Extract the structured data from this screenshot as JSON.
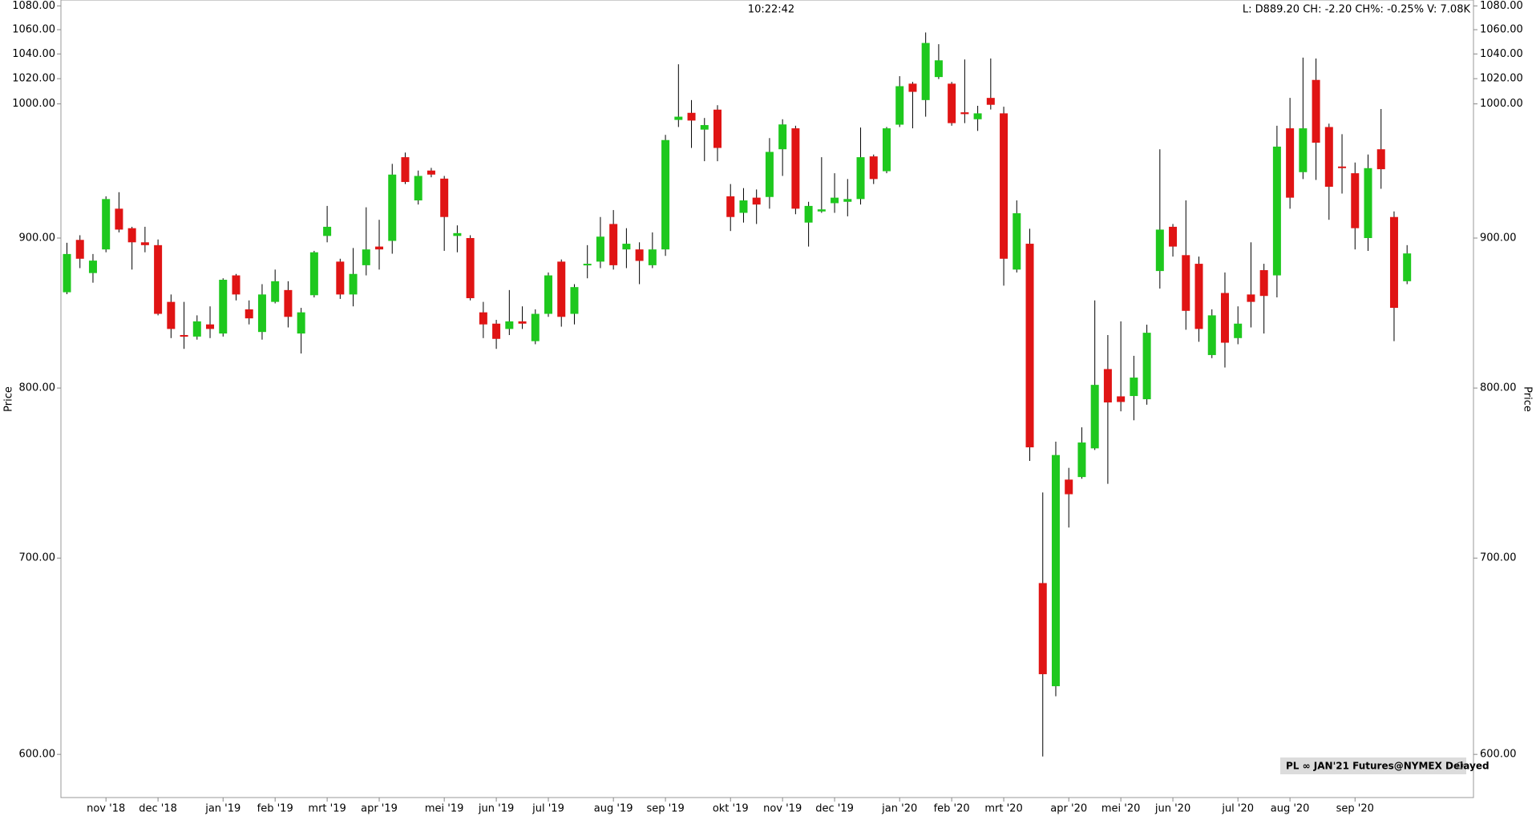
{
  "chart_data": {
    "type": "candlestick",
    "time": "10:22:42",
    "status": "L: D889.20 CH: -2.20 CH%: -0.25% V: 7.08K",
    "legend_label": "PL ∞ JAN'21 Futures@NYMEX Delayed",
    "y_label": "Price",
    "y2_label": "Price",
    "log_scale": true,
    "up_color": "#1ec81e",
    "down_color": "#e01414",
    "ylim": [
      580,
      1085
    ],
    "yticks": [
      {
        "value": 600,
        "label": "600.00"
      },
      {
        "value": 700,
        "label": "700.00"
      },
      {
        "value": 800,
        "label": "800.00"
      },
      {
        "value": 900,
        "label": "900.00"
      },
      {
        "value": 1000,
        "label": "1000.00"
      },
      {
        "value": 1020,
        "label": "1020.00"
      },
      {
        "value": 1040,
        "label": "1040.00"
      },
      {
        "value": 1060,
        "label": "1060.00"
      },
      {
        "value": 1080,
        "label": "1080.00"
      }
    ],
    "categories": [
      null,
      null,
      null,
      "nov '18",
      null,
      null,
      null,
      "dec '18",
      null,
      null,
      null,
      null,
      "jan '19",
      null,
      null,
      null,
      "feb '19",
      null,
      null,
      null,
      "mrt '19",
      null,
      null,
      null,
      "apr '19",
      null,
      null,
      null,
      null,
      "mei '19",
      null,
      null,
      null,
      "jun '19",
      null,
      null,
      null,
      "jul '19",
      null,
      null,
      null,
      null,
      "aug '19",
      null,
      null,
      null,
      "sep '19",
      null,
      null,
      null,
      null,
      "okt '19",
      null,
      null,
      null,
      "nov '19",
      null,
      null,
      null,
      "dec '19",
      null,
      null,
      null,
      null,
      "jan '20",
      null,
      null,
      null,
      "feb '20",
      null,
      null,
      null,
      "mrt '20",
      null,
      null,
      null,
      null,
      "apr '20",
      null,
      null,
      null,
      "mei '20",
      null,
      null,
      null,
      "jun '20",
      null,
      null,
      null,
      null,
      "jul '20",
      null,
      null,
      null,
      "aug '20",
      null,
      null,
      null,
      null,
      "sep '20",
      null,
      null,
      null,
      null
    ],
    "open": [
      862.5,
      898.7,
      875.6,
      892,
      921,
      907,
      897,
      895,
      856,
      834,
      833,
      841,
      835,
      874,
      851,
      836,
      856,
      864,
      835,
      860.5,
      901.5,
      883.5,
      861,
      881,
      894,
      898,
      959,
      927,
      949,
      943,
      901.5,
      900,
      849,
      841.5,
      838,
      843,
      830,
      848,
      883.5,
      848,
      881,
      883.5,
      910,
      892,
      892,
      881,
      892,
      987.5,
      993,
      980,
      995.5,
      930,
      918,
      929,
      929.5,
      965,
      981,
      911,
      919,
      925,
      926,
      928,
      959.6,
      948.5,
      983.8,
      1016,
      1003,
      1021.3,
      1016,
      993.4,
      988,
      1004.7,
      992.6,
      878,
      896,
      686.4,
      633,
      744.5,
      746,
      763,
      812,
      794.8,
      795,
      793,
      877,
      908,
      888,
      882,
      821,
      862,
      832,
      861,
      877.6,
      874,
      981,
      947.8,
      1019,
      982,
      952,
      947,
      900,
      965,
      915,
      870
    ],
    "high": [
      896.7,
      902,
      888.8,
      930,
      933,
      908,
      908,
      899,
      861,
      856,
      847,
      853,
      872,
      875,
      857,
      868,
      878,
      870,
      852,
      891,
      923,
      885.5,
      893,
      922,
      913,
      954,
      962.5,
      949,
      951,
      945,
      909,
      902,
      856,
      844,
      864,
      853,
      851,
      876,
      885,
      868,
      895,
      915,
      920,
      907,
      897,
      904,
      976,
      1031.6,
      1003,
      989,
      999,
      939,
      936,
      935,
      973.5,
      988,
      983,
      926,
      959,
      947,
      942.7,
      981.6,
      961,
      982,
      1022,
      1017.4,
      1057.7,
      1048,
      1017.4,
      1035.5,
      998.5,
      1036.3,
      997.8,
      927,
      906.6,
      737,
      767,
      751.4,
      775.7,
      857,
      834,
      843,
      820.5,
      840.8,
      965,
      910,
      927,
      887,
      851,
      876,
      853,
      897,
      882,
      983,
      1004.7,
      1037,
      1036.3,
      984.6,
      976.5,
      955,
      961,
      996,
      919,
      895
    ],
    "low": [
      861.2,
      879,
      869,
      890,
      904,
      878,
      890,
      847,
      832,
      825,
      831,
      832,
      833,
      857,
      841,
      831,
      855,
      839,
      822,
      859,
      897,
      858,
      853,
      874,
      878,
      889,
      939,
      924,
      944,
      891,
      890,
      857,
      832,
      825,
      834,
      838,
      828,
      846,
      839.5,
      841,
      872,
      879,
      878,
      879,
      868,
      879,
      887.5,
      982,
      966,
      956,
      956,
      905,
      911,
      910,
      921,
      945,
      917,
      894,
      918,
      918,
      915.5,
      924,
      939,
      947,
      982,
      981,
      990,
      1019.7,
      983,
      985,
      979,
      995.6,
      867,
      876,
      755.5,
      599,
      628,
      717,
      745,
      762,
      742,
      785.5,
      780,
      789.6,
      865,
      887,
      837.5,
      829.6,
      819,
      813,
      828,
      839,
      835,
      859,
      921,
      942.7,
      942,
      913,
      932,
      892,
      891,
      935.5,
      830,
      868
    ],
    "close": [
      888.8,
      885.5,
      884.2,
      928,
      906,
      897,
      895,
      848,
      838,
      833,
      843,
      838,
      871,
      861,
      845,
      861,
      870,
      846,
      849,
      890,
      908,
      861,
      875,
      892,
      892,
      946,
      940.5,
      945,
      946,
      915,
      903.5,
      858.5,
      841,
      831.5,
      843,
      841.5,
      848,
      874,
      846,
      866,
      882,
      901,
      881,
      896,
      884,
      892,
      972,
      990,
      987,
      983.5,
      966,
      915,
      927,
      924,
      963,
      984,
      921,
      923,
      920.5,
      929,
      928,
      959,
      942.7,
      981,
      1014,
      1009.5,
      1049,
      1034.8,
      985,
      992,
      992.6,
      999.3,
      885.5,
      917.7,
      763.6,
      639,
      759,
      736,
      766.5,
      802,
      791,
      791.3,
      806.6,
      835.5,
      906,
      894,
      850,
      838,
      847,
      829,
      841.5,
      856,
      860,
      967,
      929,
      981,
      970,
      937,
      950.8,
      907,
      950.8,
      950,
      852,
      889.2
    ]
  }
}
